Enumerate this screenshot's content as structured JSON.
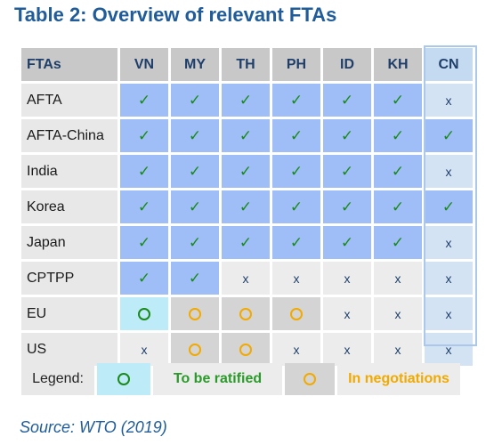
{
  "title": "Table 2: Overview of relevant FTAs",
  "headers": [
    "FTAs",
    "VN",
    "MY",
    "TH",
    "PH",
    "ID",
    "KH",
    "CN"
  ],
  "symbols": {
    "check": "✓",
    "x": "x"
  },
  "rows": [
    {
      "label": "AFTA",
      "cells": [
        "check",
        "check",
        "check",
        "check",
        "check",
        "check",
        "x"
      ]
    },
    {
      "label": "AFTA-China",
      "cells": [
        "check",
        "check",
        "check",
        "check",
        "check",
        "check",
        "check"
      ]
    },
    {
      "label": "India",
      "cells": [
        "check",
        "check",
        "check",
        "check",
        "check",
        "check",
        "x"
      ]
    },
    {
      "label": "Korea",
      "cells": [
        "check",
        "check",
        "check",
        "check",
        "check",
        "check",
        "check"
      ]
    },
    {
      "label": "Japan",
      "cells": [
        "check",
        "check",
        "check",
        "check",
        "check",
        "check",
        "x"
      ]
    },
    {
      "label": "CPTPP",
      "cells": [
        "check",
        "check",
        "x",
        "x",
        "x",
        "x",
        "x"
      ]
    },
    {
      "label": "EU",
      "cells": [
        "ratified",
        "negotiation",
        "negotiation",
        "negotiation",
        "x",
        "x",
        "x"
      ]
    },
    {
      "label": "US",
      "cells": [
        "x",
        "negotiation",
        "negotiation",
        "x",
        "x",
        "x",
        "x"
      ]
    }
  ],
  "legend": {
    "label": "Legend:",
    "ratified": "To be ratified",
    "negotiation": "In negotiations"
  },
  "colors": {
    "title": "#1f5c99",
    "check_bg": "#9fbef7",
    "check_fg": "#1a8a1a",
    "ratified_bg": "#bdebf7",
    "negotiation_bg": "#d4d4d4",
    "negotiation_ring": "#f2a900"
  },
  "source": "Source: WTO (2019)"
}
